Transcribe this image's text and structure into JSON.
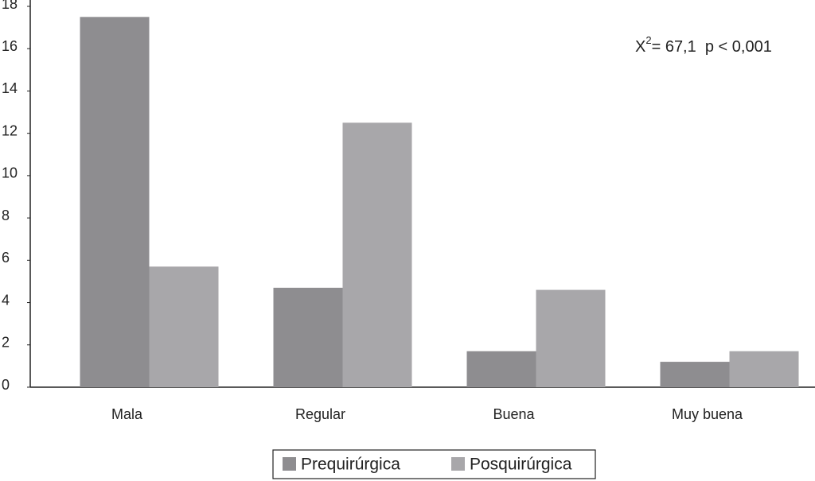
{
  "chart_data": {
    "type": "bar",
    "annotation": {
      "base": "X",
      "sup": "2",
      "rest": "= 67,1  p < 0,001"
    },
    "categories": [
      "Mala",
      "Regular",
      "Buena",
      "Muy buena"
    ],
    "series": [
      {
        "name": "Prequirúrgica",
        "color": "#8e8d90",
        "values": [
          17.5,
          4.7,
          1.7,
          1.2
        ]
      },
      {
        "name": "Posquirúrgica",
        "color": "#a8a7aa",
        "values": [
          5.7,
          12.5,
          4.6,
          1.7
        ]
      }
    ],
    "ylim": [
      0,
      18
    ],
    "yticks": [
      0,
      2,
      4,
      6,
      8,
      10,
      12,
      14,
      16,
      18
    ],
    "grid": false
  }
}
